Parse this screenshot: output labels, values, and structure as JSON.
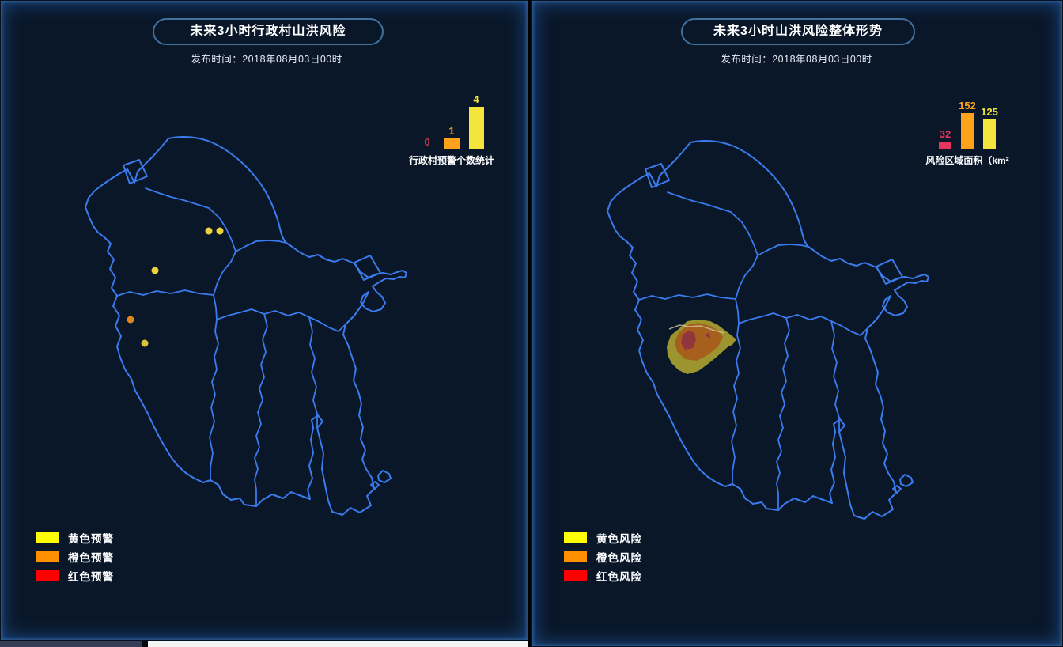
{
  "panels": {
    "left": {
      "title": "未来3小时行政村山洪风险",
      "publish_time": "发布时间：2018年08月03日00时",
      "chart_caption": "行政村预警个数统计",
      "legend": [
        {
          "label": "黄色预警",
          "color": "#ffff00"
        },
        {
          "label": "橙色预警",
          "color": "#ff9000"
        },
        {
          "label": "红色预警",
          "color": "#ff0000"
        }
      ],
      "map_markers": {
        "yellow_warning_villages": 4,
        "orange_warning_villages": 1,
        "red_warning_villages": 0
      }
    },
    "right": {
      "title": "未来3小时山洪风险整体形势",
      "publish_time": "发布时间：2018年08月03日00时",
      "chart_caption": "风险区域面积（km²",
      "legend": [
        {
          "label": "黄色风险",
          "color": "#ffff00"
        },
        {
          "label": "橙色风险",
          "color": "#ff9000"
        },
        {
          "label": "红色风险",
          "color": "#ff0000"
        }
      ],
      "map_overlay": {
        "yellow_risk_area": true,
        "orange_risk_area": true,
        "red_risk_area": true
      }
    }
  },
  "chart_data": [
    {
      "type": "bar",
      "panel": "left",
      "title": "行政村预警个数统计",
      "categories": [
        "红色预警",
        "橙色预警",
        "黄色预警"
      ],
      "values": [
        0,
        1,
        4
      ],
      "bar_colors": [
        "#c23a4b",
        "#ffa21b",
        "#f3e53b"
      ],
      "ylim": [
        0,
        4
      ],
      "grid": false,
      "legend_position": "none",
      "value_labels": true
    },
    {
      "type": "bar",
      "panel": "right",
      "title": "风险区域面积（km²",
      "categories": [
        "红色风险",
        "橙色风险",
        "黄色风险"
      ],
      "values": [
        32,
        152,
        125
      ],
      "bar_colors": [
        "#e8355e",
        "#ffa21b",
        "#f3e53b"
      ],
      "ylim": [
        0,
        160
      ],
      "grid": false,
      "legend_position": "none",
      "value_labels": true
    }
  ],
  "colors": {
    "panel_background": "#0a1729",
    "map_line": "#3a7bee",
    "risk_yellow_fill": "#a39b2f",
    "risk_orange_fill": "#a85c1e",
    "risk_red_fill": "#8f3340"
  }
}
